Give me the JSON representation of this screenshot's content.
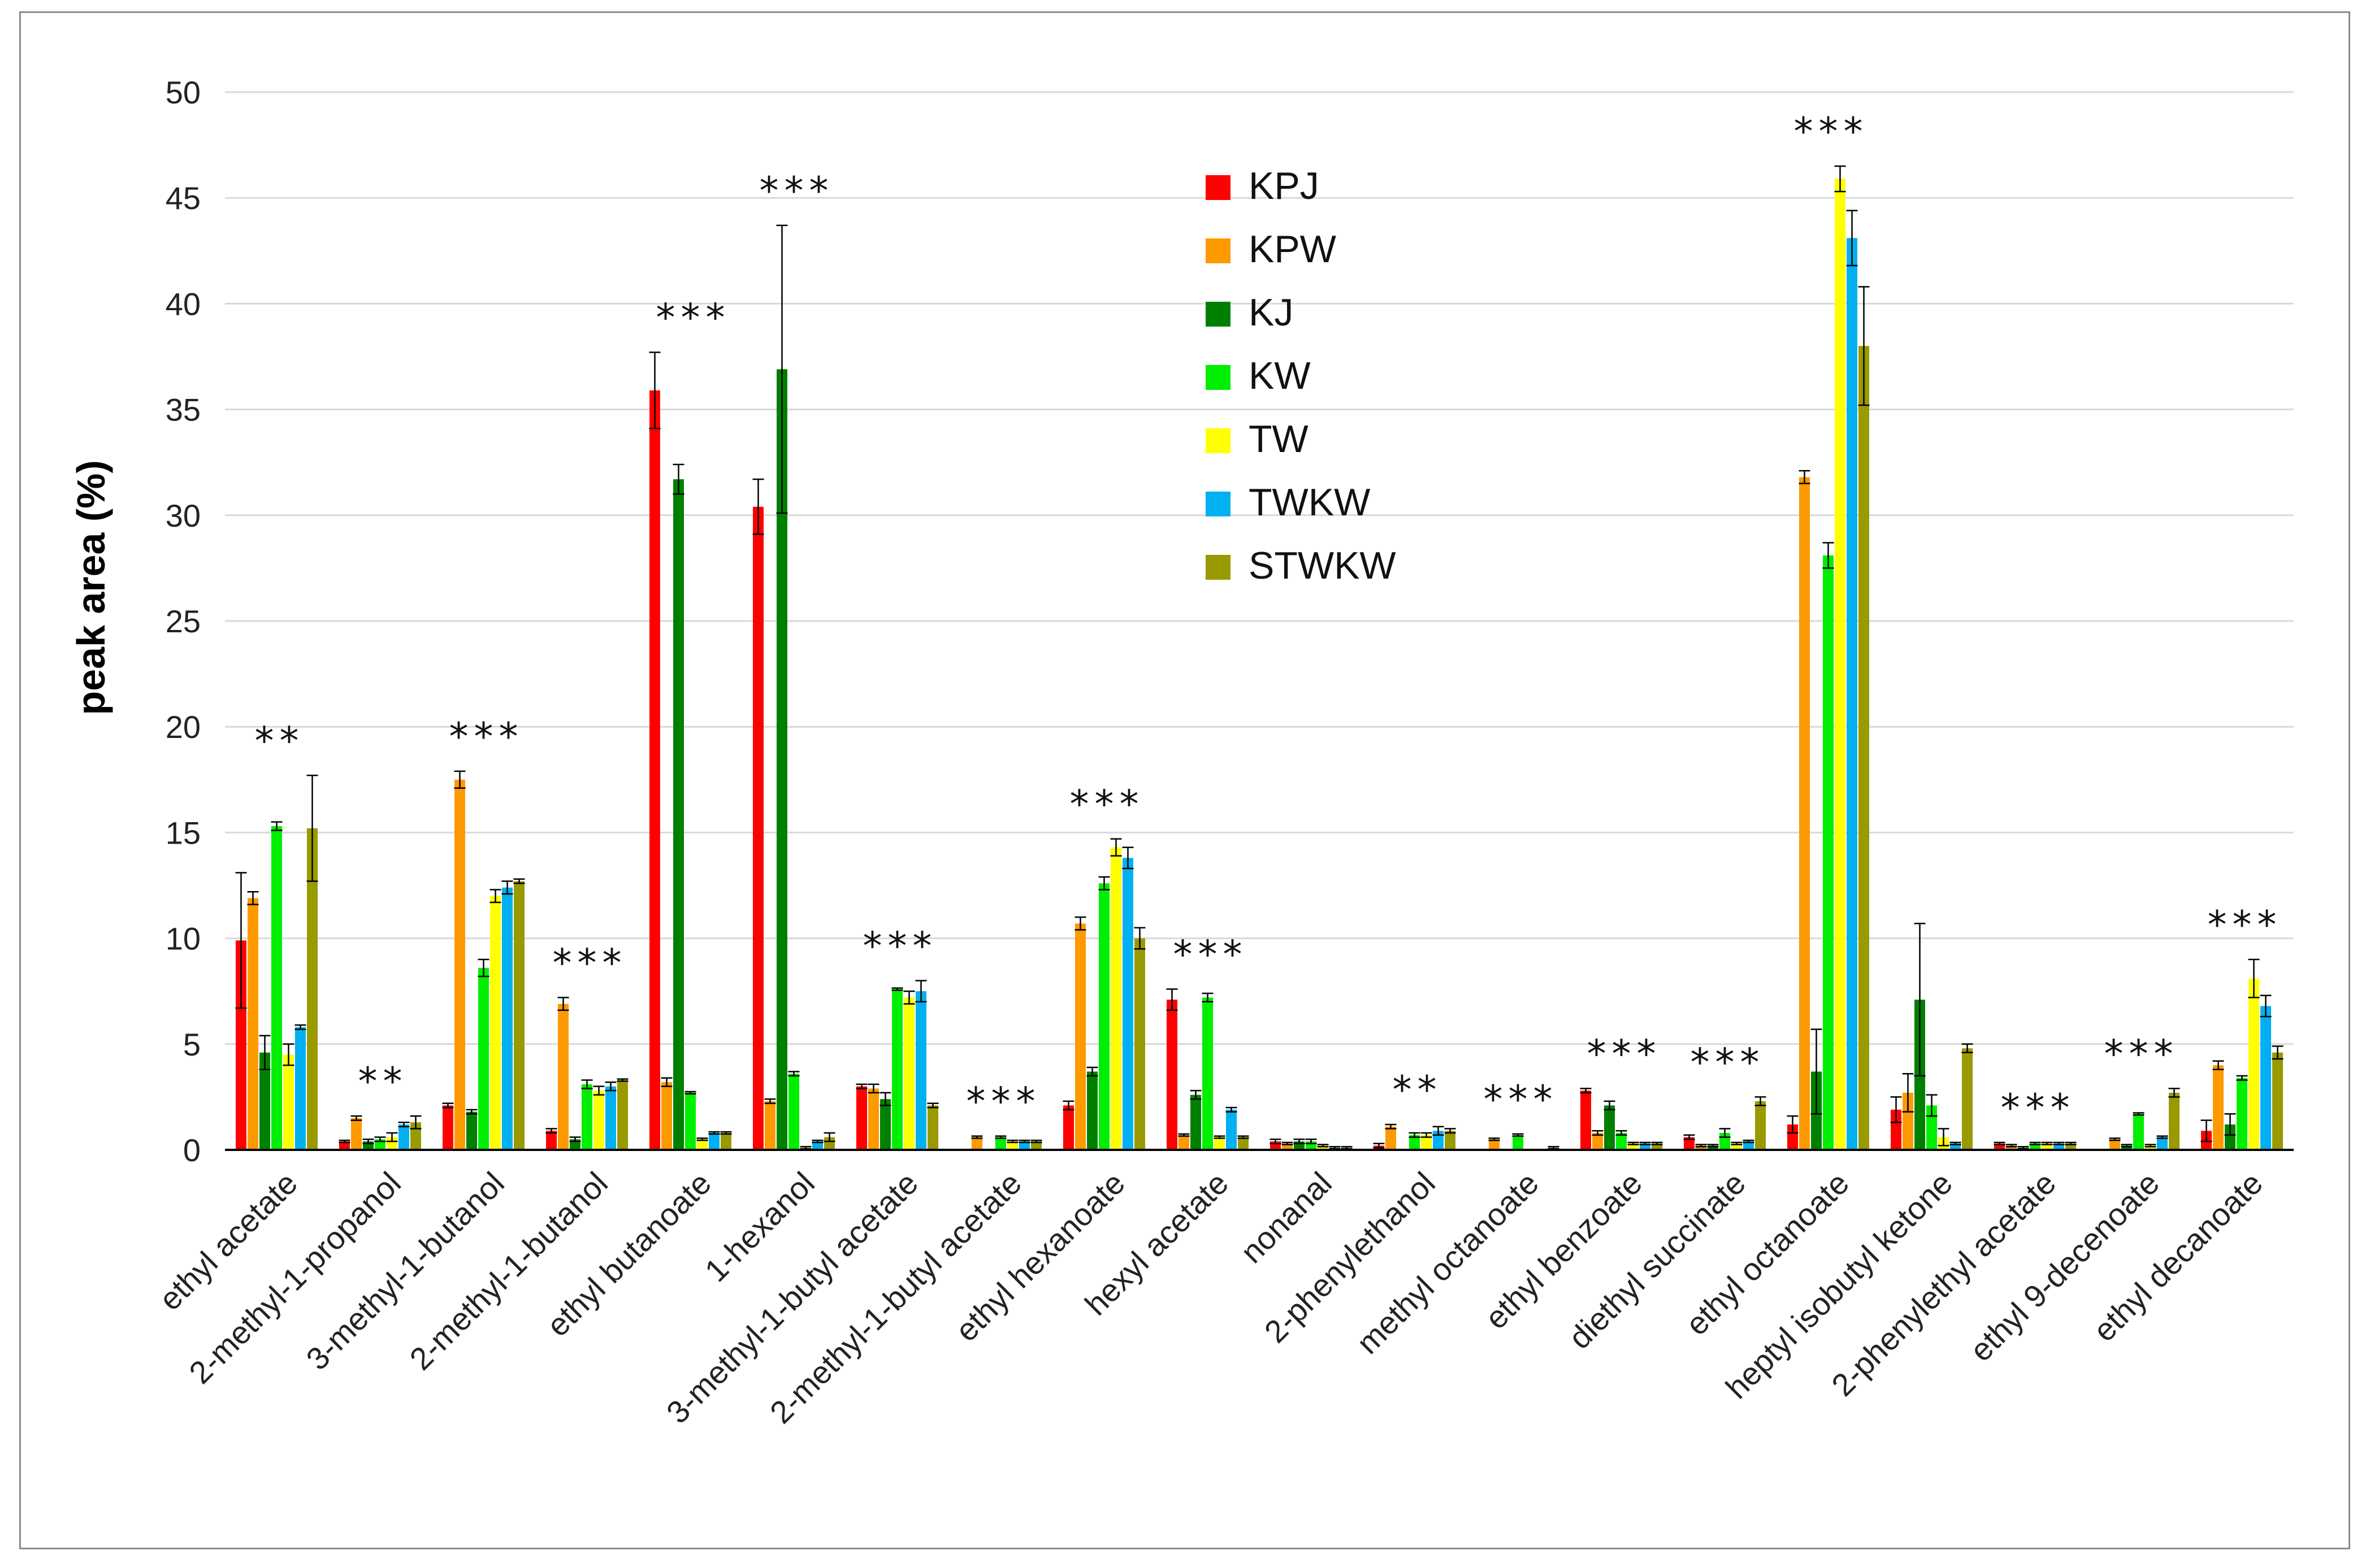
{
  "chart_data": {
    "type": "bar",
    "title": "",
    "xlabel": "",
    "ylabel": "peak area (%)",
    "ylim": [
      0,
      50
    ],
    "yticks": [
      0,
      5,
      10,
      15,
      20,
      25,
      30,
      35,
      40,
      45,
      50
    ],
    "grid": true,
    "legend_position": "top-center",
    "categories": [
      "ethyl acetate",
      "2-methyl-1-propanol",
      "3-methyl-1-butanol",
      "2-methyl-1-butanol",
      "ethyl butanoate",
      "1-hexanol",
      "3-methyl-1-butyl acetate",
      "2-methyl-1-butyl acetate",
      "ethyl hexanoate",
      "hexyl acetate",
      "nonanal",
      "2-phenylethanol",
      "methyl octanoate",
      "ethyl benzoate",
      "diethyl succinate",
      "ethyl octanoate",
      "heptyl isobutyl ketone",
      "2-phenylethyl acetate",
      "ethyl 9-decenoate",
      "ethyl decanoate"
    ],
    "significance": [
      "**",
      "**",
      "***",
      "***",
      "***",
      "***",
      "***",
      "***",
      "***",
      "***",
      "",
      "**",
      "***",
      "***",
      "***",
      "***",
      "",
      "***",
      "***",
      "***"
    ],
    "series": [
      {
        "name": "KPJ",
        "color": "#ff0000",
        "values": [
          9.9,
          0.4,
          2.1,
          0.9,
          35.9,
          30.4,
          3.0,
          0.0,
          2.1,
          7.1,
          0.4,
          0.2,
          0.0,
          2.8,
          0.6,
          1.2,
          1.9,
          0.3,
          0.0,
          0.9
        ],
        "errors": [
          3.2,
          0.05,
          0.1,
          0.1,
          1.8,
          1.3,
          0.1,
          0.0,
          0.2,
          0.5,
          0.1,
          0.1,
          0.0,
          0.1,
          0.1,
          0.4,
          0.6,
          0.05,
          0.0,
          0.5
        ]
      },
      {
        "name": "KPW",
        "color": "#ff9900",
        "values": [
          11.9,
          1.5,
          17.5,
          6.9,
          3.2,
          2.3,
          2.9,
          0.6,
          10.7,
          0.7,
          0.3,
          1.1,
          0.5,
          0.8,
          0.2,
          31.8,
          2.7,
          0.2,
          0.5,
          4.0
        ],
        "errors": [
          0.3,
          0.1,
          0.4,
          0.3,
          0.2,
          0.1,
          0.2,
          0.05,
          0.3,
          0.05,
          0.05,
          0.1,
          0.05,
          0.1,
          0.05,
          0.3,
          0.9,
          0.05,
          0.05,
          0.2
        ]
      },
      {
        "name": "KJ",
        "color": "#008000",
        "values": [
          4.6,
          0.4,
          1.8,
          0.5,
          31.7,
          36.9,
          2.4,
          0.0,
          3.7,
          2.6,
          0.4,
          0.0,
          0.0,
          2.1,
          0.2,
          3.7,
          7.1,
          0.1,
          0.2,
          1.2
        ],
        "errors": [
          0.8,
          0.1,
          0.1,
          0.1,
          0.7,
          6.8,
          0.3,
          0.0,
          0.2,
          0.2,
          0.1,
          0.0,
          0.0,
          0.2,
          0.05,
          2.0,
          3.6,
          0.05,
          0.05,
          0.5
        ]
      },
      {
        "name": "KW",
        "color": "#00ee00",
        "values": [
          15.3,
          0.5,
          8.6,
          3.1,
          2.7,
          3.6,
          7.6,
          0.6,
          12.6,
          7.2,
          0.4,
          0.7,
          0.7,
          0.8,
          0.8,
          28.1,
          2.1,
          0.3,
          1.7,
          3.4
        ],
        "errors": [
          0.2,
          0.1,
          0.4,
          0.2,
          0.05,
          0.1,
          0.05,
          0.05,
          0.3,
          0.2,
          0.1,
          0.1,
          0.05,
          0.1,
          0.2,
          0.6,
          0.5,
          0.05,
          0.05,
          0.1
        ]
      },
      {
        "name": "TW",
        "color": "#ffff00",
        "values": [
          4.5,
          0.6,
          12.0,
          2.8,
          0.5,
          0.1,
          7.2,
          0.4,
          14.3,
          0.6,
          0.2,
          0.7,
          0.0,
          0.3,
          0.3,
          45.9,
          0.6,
          0.3,
          0.2,
          8.1
        ],
        "errors": [
          0.5,
          0.2,
          0.3,
          0.2,
          0.05,
          0.05,
          0.3,
          0.05,
          0.4,
          0.05,
          0.05,
          0.1,
          0.0,
          0.05,
          0.05,
          0.6,
          0.4,
          0.05,
          0.05,
          0.9
        ]
      },
      {
        "name": "TWKW",
        "color": "#00b0f0",
        "values": [
          5.8,
          1.2,
          12.4,
          3.0,
          0.8,
          0.4,
          7.5,
          0.4,
          13.8,
          1.9,
          0.1,
          0.9,
          0.0,
          0.3,
          0.4,
          43.1,
          0.3,
          0.3,
          0.6,
          6.8
        ],
        "errors": [
          0.1,
          0.1,
          0.3,
          0.2,
          0.05,
          0.05,
          0.5,
          0.05,
          0.5,
          0.1,
          0.05,
          0.2,
          0.0,
          0.05,
          0.05,
          1.3,
          0.05,
          0.05,
          0.05,
          0.5
        ]
      },
      {
        "name": "STWKW",
        "color": "#999900",
        "values": [
          15.2,
          1.3,
          12.7,
          3.3,
          0.8,
          0.6,
          2.1,
          0.4,
          10.0,
          0.6,
          0.1,
          0.9,
          0.1,
          0.3,
          2.3,
          38.0,
          4.8,
          0.3,
          2.7,
          4.6
        ],
        "errors": [
          2.5,
          0.3,
          0.1,
          0.05,
          0.05,
          0.2,
          0.1,
          0.05,
          0.5,
          0.05,
          0.05,
          0.1,
          0.05,
          0.05,
          0.2,
          2.8,
          0.2,
          0.05,
          0.2,
          0.3
        ]
      }
    ]
  }
}
